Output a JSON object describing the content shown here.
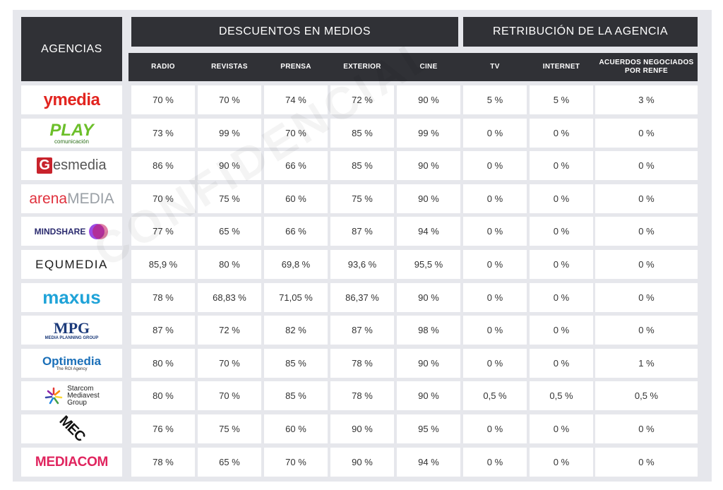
{
  "header": {
    "agencias": "AGENCIAS",
    "descuentos": "DESCUENTOS EN MEDIOS",
    "retribucion": "RETRIBUCIÓN DE LA AGENCIA",
    "columns": [
      "RADIO",
      "REVISTAS",
      "PRENSA",
      "EXTERIOR",
      "CINE",
      "TV",
      "INTERNET",
      "ACUERDOS NEGOCIADOS POR RENFE"
    ]
  },
  "watermark": "CONFIDENCIAL",
  "rows": [
    {
      "agency": "ymedia",
      "values": [
        "70 %",
        "70 %",
        "74 %",
        "72 %",
        "90 %",
        "5 %",
        "5 %",
        "3 %"
      ]
    },
    {
      "agency": "PLAY comunicación",
      "values": [
        "73 %",
        "99 %",
        "70 %",
        "85 %",
        "99 %",
        "0 %",
        "0 %",
        "0 %"
      ]
    },
    {
      "agency": "Gesmedia",
      "values": [
        "86 %",
        "90 %",
        "66 %",
        "85 %",
        "90 %",
        "0 %",
        "0 %",
        "0 %"
      ]
    },
    {
      "agency": "arenaMEDIA",
      "values": [
        "70 %",
        "75 %",
        "60 %",
        "75 %",
        "90 %",
        "0 %",
        "0 %",
        "0 %"
      ]
    },
    {
      "agency": "MINDSHARE",
      "values": [
        "77 %",
        "65 %",
        "66 %",
        "87 %",
        "94 %",
        "0 %",
        "0 %",
        "0 %"
      ]
    },
    {
      "agency": "EQUMEDIA",
      "values": [
        "85,9 %",
        "80 %",
        "69,8 %",
        "93,6 %",
        "95,5 %",
        "0 %",
        "0 %",
        "0 %"
      ]
    },
    {
      "agency": "maxus",
      "values": [
        "78 %",
        "68,83 %",
        "71,05 %",
        "86,37 %",
        "90 %",
        "0 %",
        "0 %",
        "0 %"
      ]
    },
    {
      "agency": "MPG Media Planning Group",
      "values": [
        "87 %",
        "72 %",
        "82 %",
        "87 %",
        "98 %",
        "0 %",
        "0 %",
        "0 %"
      ]
    },
    {
      "agency": "Optimedia The ROI Agency",
      "values": [
        "80 %",
        "70 %",
        "85 %",
        "78 %",
        "90 %",
        "0 %",
        "0 %",
        "1 %"
      ]
    },
    {
      "agency": "Starcom Mediavest Group",
      "values": [
        "80 %",
        "70 %",
        "85 %",
        "78 %",
        "90 %",
        "0,5 %",
        "0,5 %",
        "0,5 %"
      ]
    },
    {
      "agency": "MEC",
      "values": [
        "76 %",
        "75 %",
        "60 %",
        "90 %",
        "95 %",
        "0 %",
        "0 %",
        "0 %"
      ]
    },
    {
      "agency": "MEDIACOM",
      "values": [
        "78 %",
        "65 %",
        "70 %",
        "90 %",
        "94 %",
        "0 %",
        "0 %",
        "0 %"
      ]
    }
  ],
  "logos": {
    "ymedia": {
      "text": "ymedia",
      "color": "#e2241f"
    },
    "play": {
      "main": "PLAY",
      "sub": "comunicación",
      "color": "#6cbf2a"
    },
    "gesmedia": {
      "g": "G",
      "rest": "esmedia",
      "color": "#c8232c"
    },
    "arena": {
      "a": "arena",
      "b": "MEDIA",
      "color": "#e0303c"
    },
    "mindshare": {
      "text": "MINDSHARE"
    },
    "equmedia": {
      "text": "EQUMEDIA"
    },
    "maxus": {
      "text": "maxus",
      "color": "#1fa3d8"
    },
    "mpg": {
      "main": "MPG",
      "sub": "MEDIA PLANNING GROUP",
      "color": "#1b3a7a"
    },
    "optimedia": {
      "main": "Optimedia",
      "sub": "The ROI Agency",
      "color": "#1a6fb8"
    },
    "starcom": {
      "l1": "Starcom",
      "l2": "Mediavest",
      "l3": "Group"
    },
    "mec": {
      "text": "MEC"
    },
    "mediacom": {
      "text": "MEDIACOM",
      "color": "#e0245e"
    }
  }
}
